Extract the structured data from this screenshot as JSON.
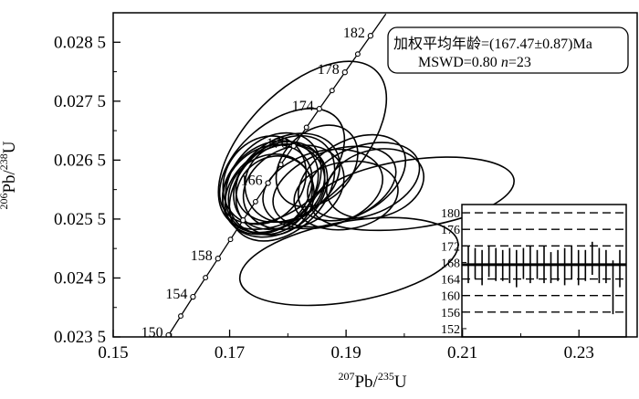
{
  "chart_data": {
    "type": "scatter",
    "subtype": "concordia-error-ellipses",
    "xlabel": {
      "sup": "207",
      "main": "Pb/",
      "sup2": "235",
      "end": "U"
    },
    "ylabel": {
      "sup": "206",
      "main": "Pb/",
      "sup2": "238",
      "end": "U"
    },
    "xlim": [
      0.15,
      0.24
    ],
    "ylim": [
      0.0235,
      0.029
    ],
    "x_ticks": [
      0.15,
      0.17,
      0.19,
      0.21,
      0.23
    ],
    "x_tick_labels": [
      "0.15",
      "0.17",
      "0.19",
      "0.21",
      "0.23"
    ],
    "y_ticks": [
      0.0235,
      0.0245,
      0.0255,
      0.0265,
      0.0275,
      0.0285
    ],
    "y_tick_labels": [
      "0.023 5",
      "0.024 5",
      "0.025 5",
      "0.026 5",
      "0.027 5",
      "0.028 5"
    ],
    "concordia_age_labels": [
      "150",
      "154",
      "158",
      "166",
      "170",
      "174",
      "178",
      "182"
    ],
    "concordia_points": [
      {
        "age": 150,
        "x": 0.1595,
        "y": 0.02353
      },
      {
        "age": 154,
        "x": 0.1637,
        "y": 0.02418
      },
      {
        "age": 158,
        "x": 0.168,
        "y": 0.02483
      },
      {
        "age": 162,
        "x": 0.1723,
        "y": 0.02548
      },
      {
        "age": 166,
        "x": 0.1766,
        "y": 0.02611
      },
      {
        "age": 170,
        "x": 0.181,
        "y": 0.02674
      },
      {
        "age": 174,
        "x": 0.1854,
        "y": 0.02737
      },
      {
        "age": 178,
        "x": 0.1898,
        "y": 0.02799
      },
      {
        "age": 182,
        "x": 0.1942,
        "y": 0.02861
      }
    ],
    "ellipses": [
      {
        "cx": 0.179,
        "cy": 0.0264,
        "rx": 0.0125,
        "ry": 0.00074,
        "angle": 40
      },
      {
        "cx": 0.179,
        "cy": 0.02602,
        "rx": 0.0105,
        "ry": 0.00072,
        "angle": 45
      },
      {
        "cx": 0.1775,
        "cy": 0.02611,
        "rx": 0.0095,
        "ry": 0.00071,
        "angle": 50
      },
      {
        "cx": 0.177,
        "cy": 0.02605,
        "rx": 0.009,
        "ry": 0.00069,
        "angle": 40
      },
      {
        "cx": 0.178,
        "cy": 0.02598,
        "rx": 0.0095,
        "ry": 0.0007,
        "angle": 35
      },
      {
        "cx": 0.1765,
        "cy": 0.026,
        "rx": 0.0085,
        "ry": 0.00067,
        "angle": 45
      },
      {
        "cx": 0.18,
        "cy": 0.0262,
        "rx": 0.0095,
        "ry": 0.00068,
        "angle": 30
      },
      {
        "cx": 0.176,
        "cy": 0.02616,
        "rx": 0.008,
        "ry": 0.00066,
        "angle": 55
      },
      {
        "cx": 0.1785,
        "cy": 0.02607,
        "rx": 0.0085,
        "ry": 0.00067,
        "angle": 40
      },
      {
        "cx": 0.177,
        "cy": 0.02592,
        "rx": 0.0075,
        "ry": 0.00065,
        "angle": 35
      },
      {
        "cx": 0.181,
        "cy": 0.02604,
        "rx": 0.009,
        "ry": 0.00067,
        "angle": 25
      },
      {
        "cx": 0.1778,
        "cy": 0.0259,
        "rx": 0.007,
        "ry": 0.00064,
        "angle": 50
      },
      {
        "cx": 0.1795,
        "cy": 0.02611,
        "rx": 0.007,
        "ry": 0.00065,
        "angle": 35
      },
      {
        "cx": 0.186,
        "cy": 0.02601,
        "rx": 0.0105,
        "ry": 0.00064,
        "angle": 15
      },
      {
        "cx": 0.188,
        "cy": 0.02605,
        "rx": 0.011,
        "ry": 0.00061,
        "angle": 20
      },
      {
        "cx": 0.191,
        "cy": 0.0262,
        "rx": 0.01,
        "ry": 0.00062,
        "angle": 30
      },
      {
        "cx": 0.193,
        "cy": 0.02615,
        "rx": 0.01,
        "ry": 0.00059,
        "angle": 20
      },
      {
        "cx": 0.195,
        "cy": 0.0261,
        "rx": 0.0085,
        "ry": 0.00057,
        "angle": 15
      },
      {
        "cx": 0.19,
        "cy": 0.0259,
        "rx": 0.009,
        "ry": 0.00057,
        "angle": 10
      },
      {
        "cx": 0.2015,
        "cy": 0.02593,
        "rx": 0.0175,
        "ry": 0.00058,
        "angle": 8
      },
      {
        "cx": 0.1905,
        "cy": 0.02478,
        "rx": 0.019,
        "ry": 0.00068,
        "angle": 10
      },
      {
        "cx": 0.185,
        "cy": 0.0264,
        "rx": 0.008,
        "ry": 0.00058,
        "angle": 45
      },
      {
        "cx": 0.1825,
        "cy": 0.02675,
        "rx": 0.018,
        "ry": 0.00095,
        "angle": 45
      }
    ],
    "annotation": {
      "line1": "加权平均年龄=(167.47±0.87)Ma",
      "line2_prefix": "MSWD=0.80  ",
      "line2_n": "n",
      "line2_suffix": "=23"
    },
    "inset": {
      "type": "error-bar",
      "ylim": [
        150,
        182
      ],
      "y_ticks": [
        152,
        156,
        160,
        164,
        168,
        172,
        176,
        180
      ],
      "y_tick_labels": [
        "152",
        "156",
        "160",
        "164",
        "168",
        "172",
        "176",
        "180"
      ],
      "dashed_lines": [
        180,
        176,
        172,
        164,
        160,
        156
      ],
      "mean": 167.47,
      "bars": [
        {
          "low": 163.0,
          "high": 172.0
        },
        {
          "low": 164.0,
          "high": 171.5
        },
        {
          "low": 162.5,
          "high": 171.0
        },
        {
          "low": 164.5,
          "high": 172.0
        },
        {
          "low": 163.5,
          "high": 171.5
        },
        {
          "low": 163.5,
          "high": 171.0
        },
        {
          "low": 163.0,
          "high": 171.5
        },
        {
          "low": 162.0,
          "high": 171.0
        },
        {
          "low": 164.0,
          "high": 171.5
        },
        {
          "low": 163.0,
          "high": 172.0
        },
        {
          "low": 164.0,
          "high": 171.0
        },
        {
          "low": 163.0,
          "high": 172.0
        },
        {
          "low": 163.0,
          "high": 170.5
        },
        {
          "low": 163.5,
          "high": 171.0
        },
        {
          "low": 162.5,
          "high": 171.5
        },
        {
          "low": 164.0,
          "high": 172.0
        },
        {
          "low": 162.5,
          "high": 171.0
        },
        {
          "low": 163.5,
          "high": 171.0
        },
        {
          "low": 165.0,
          "high": 173.0
        },
        {
          "low": 163.0,
          "high": 171.5
        },
        {
          "low": 163.0,
          "high": 171.0
        },
        {
          "low": 155.5,
          "high": 168.5
        },
        {
          "low": 162.0,
          "high": 171.0
        }
      ]
    }
  }
}
